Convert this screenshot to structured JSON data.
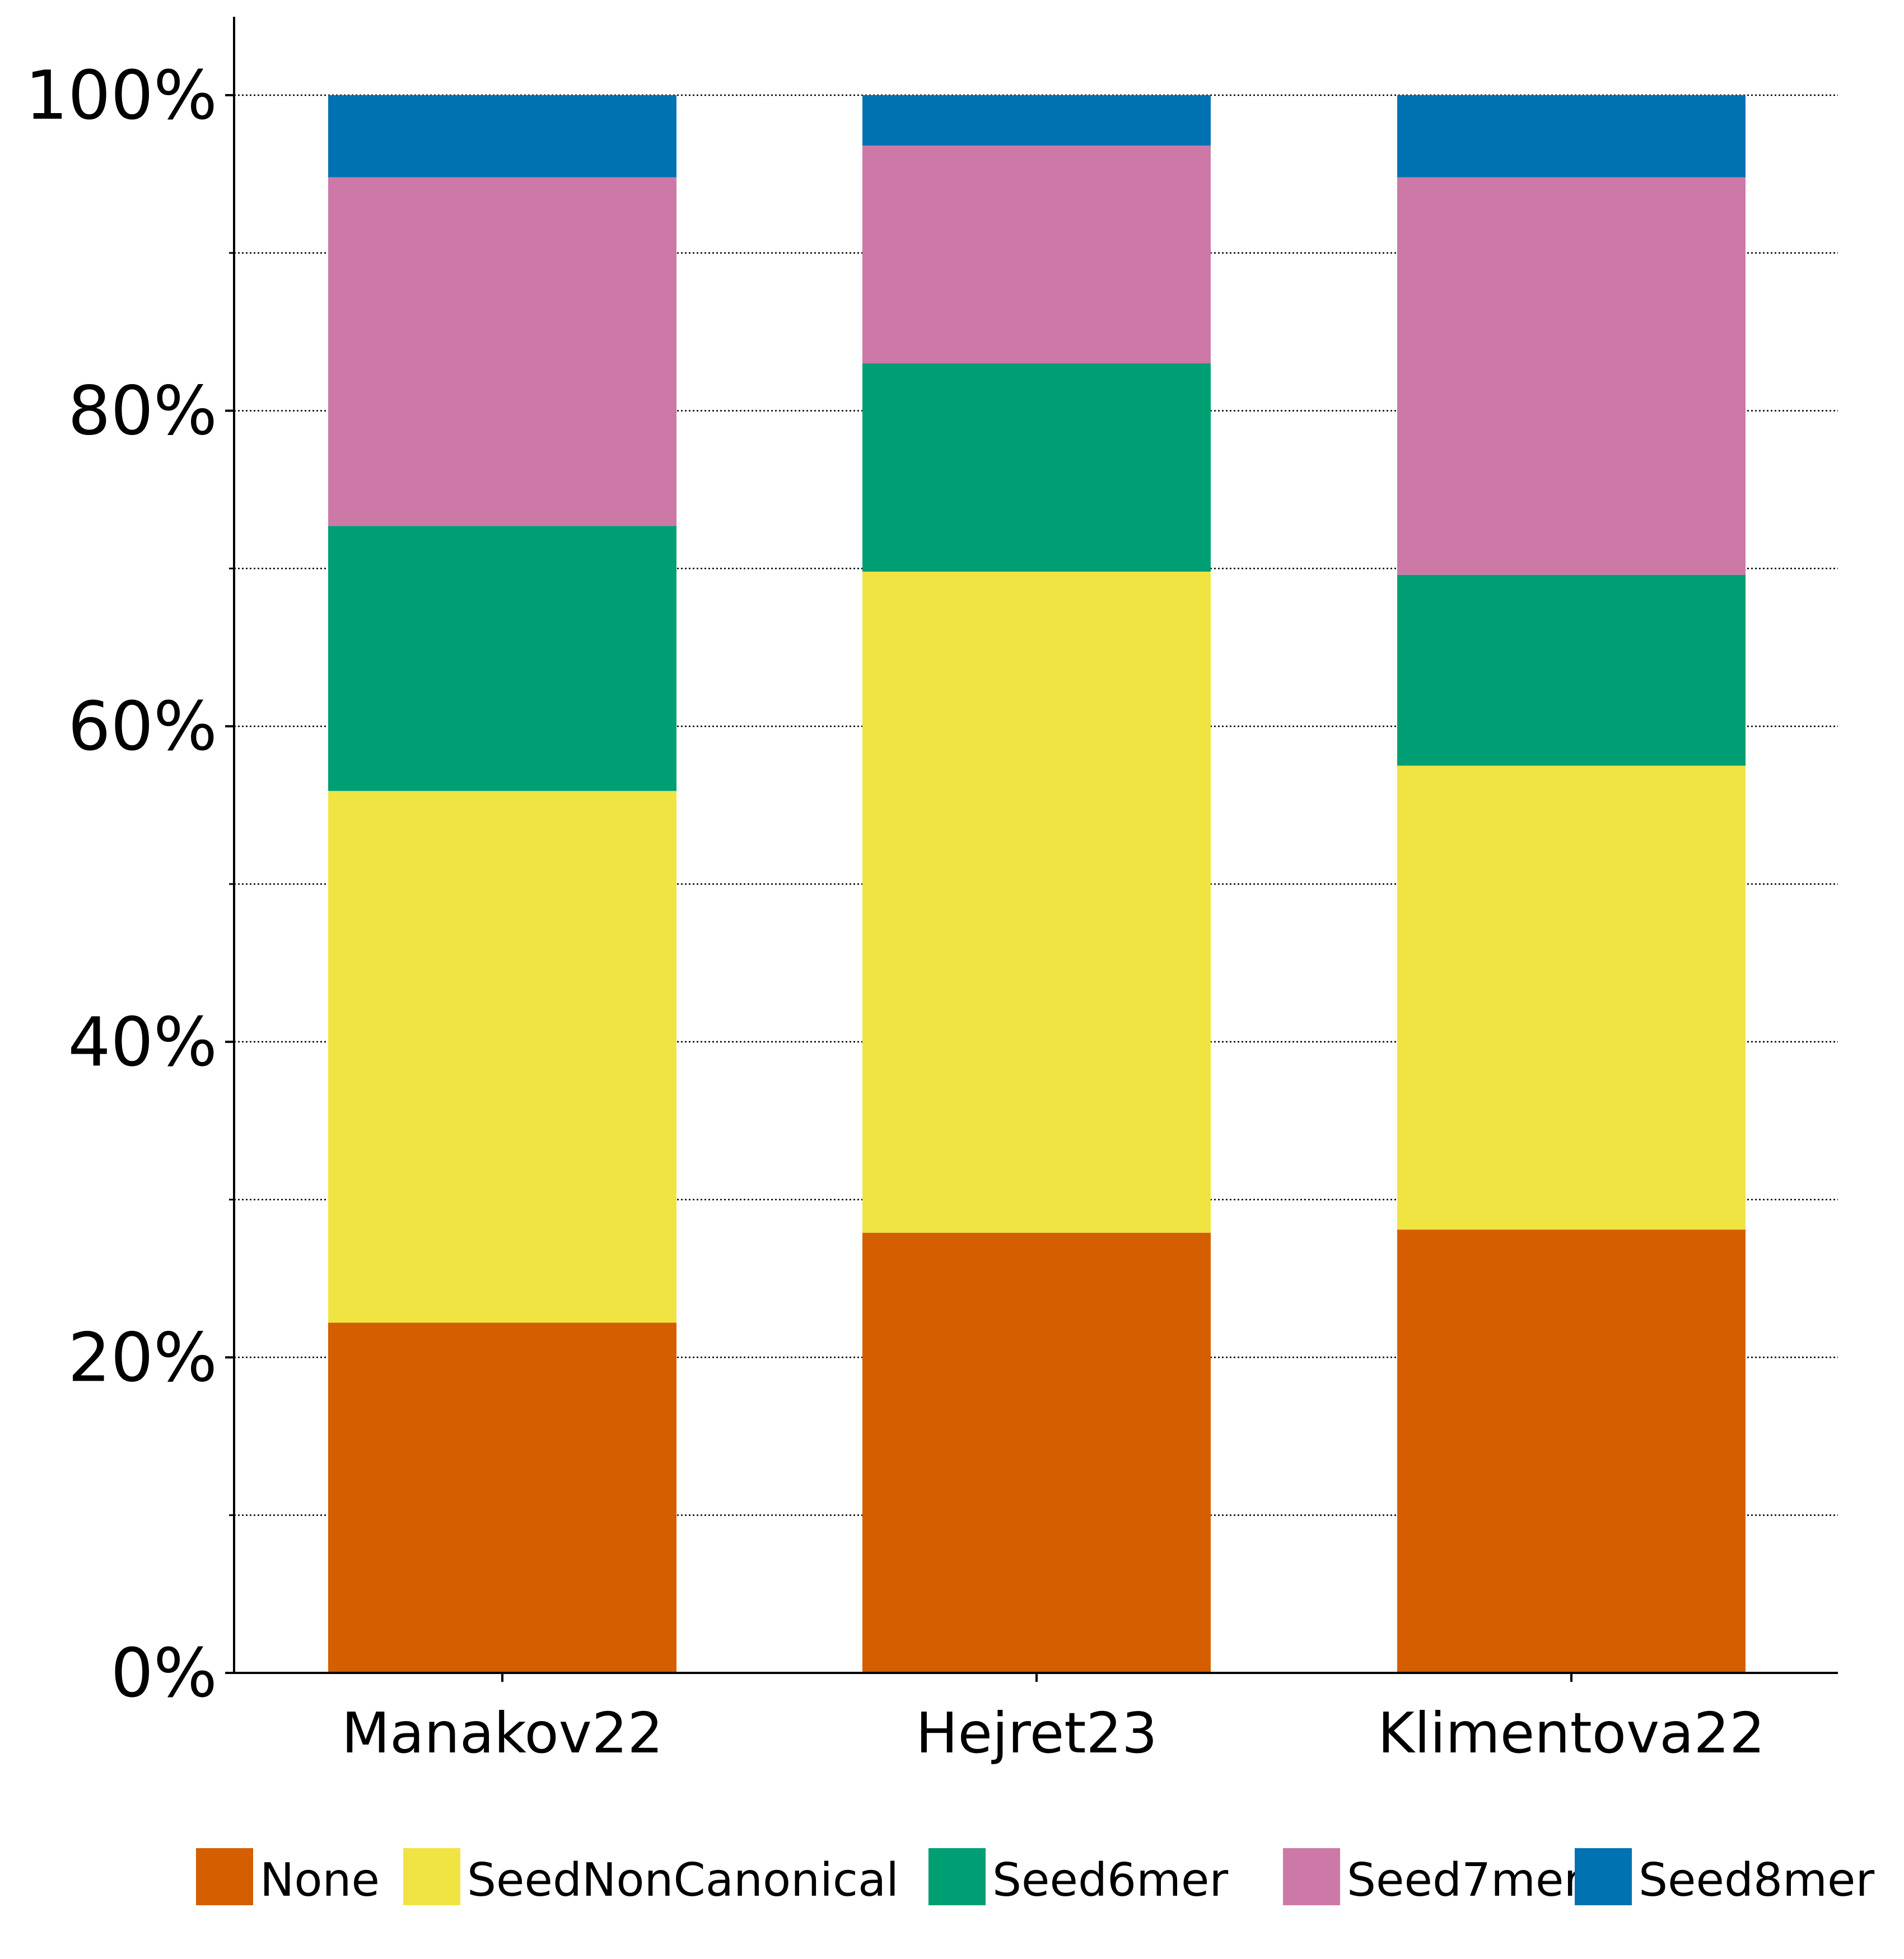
{
  "chart_data": {
    "type": "bar",
    "stacked": true,
    "title": "",
    "xlabel": "",
    "ylabel": "",
    "categories": [
      "Manakov22",
      "Hejret23",
      "Klimentova22"
    ],
    "series": [
      {
        "name": "None",
        "color": "#D55E00",
        "values": [
          22.2,
          27.9,
          28.1
        ]
      },
      {
        "name": "SeedNonCanonical",
        "color": "#F0E442",
        "values": [
          33.7,
          41.9,
          29.4
        ]
      },
      {
        "name": "Seed6mer",
        "color": "#009E73",
        "values": [
          16.8,
          13.2,
          12.1
        ]
      },
      {
        "name": "Seed7mer",
        "color": "#CC79A7",
        "values": [
          22.1,
          13.8,
          25.2
        ]
      },
      {
        "name": "Seed8mer",
        "color": "#0072B2",
        "values": [
          5.2,
          3.2,
          5.2
        ]
      }
    ],
    "ylim": [
      0,
      105
    ],
    "y_ticks": [
      0,
      20,
      40,
      60,
      80,
      100
    ],
    "y_tick_labels": [
      "0%",
      "20%",
      "40%",
      "60%",
      "80%",
      "100%"
    ],
    "y_minor_ticks": [
      10,
      30,
      50,
      70,
      90
    ],
    "grid": "horizontal-dotted",
    "legend_position": "bottom"
  }
}
